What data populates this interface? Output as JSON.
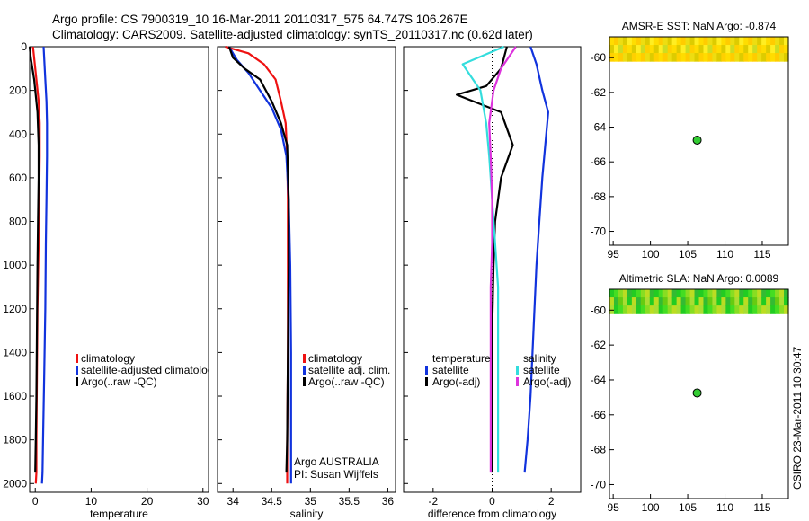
{
  "header": {
    "line1": "Argo profile: CS 7900319_10 16-Mar-2011 20110317_575 64.747S 106.267E",
    "line2": "Climatology: CARS2009. Satellite-adjusted climatology: synTS_20110317.nc (0.62d later)"
  },
  "colors": {
    "climatology": "#ee1111",
    "satellite": "#1133dd",
    "argo": "#000000",
    "sat_salinity": "#33dddd",
    "argo_adj_salinity": "#dd33dd"
  },
  "chart_data": [
    {
      "type": "line",
      "title": "",
      "xlabel": "temperature",
      "ylabel": "",
      "xlim": [
        -1,
        31
      ],
      "ylim": [
        2040,
        0
      ],
      "xticks": [
        0,
        10,
        20,
        30
      ],
      "yticks": [
        0,
        200,
        400,
        600,
        800,
        1000,
        1200,
        1400,
        1600,
        1800,
        2000
      ],
      "legend": [
        "climatology",
        "satellite-adjusted climatology",
        "Argo(..raw -QC)"
      ],
      "series": [
        {
          "name": "climatology",
          "color": "#ee1111",
          "x": [
            -0.4,
            0.2,
            0.6,
            0.8,
            0.8,
            0.7,
            0.6,
            0.4,
            0.3,
            0.2,
            0.2,
            0.1
          ],
          "y": [
            0,
            150,
            250,
            350,
            500,
            700,
            900,
            1200,
            1500,
            1800,
            1950,
            2000
          ]
        },
        {
          "name": "satellite-adjusted climatology",
          "color": "#1133dd",
          "x": [
            1.5,
            1.8,
            2.0,
            2.1,
            2.1,
            2.0,
            1.9,
            1.8,
            1.6,
            1.4,
            1.3,
            1.2
          ],
          "y": [
            0,
            150,
            250,
            350,
            500,
            700,
            900,
            1200,
            1500,
            1800,
            1950,
            2000
          ]
        },
        {
          "name": "Argo(..raw -QC)",
          "color": "#000000",
          "x": [
            -1.0,
            -0.8,
            -0.2,
            0.4,
            0.6,
            0.6,
            0.5,
            0.4,
            0.3,
            0.2,
            0.1,
            0.0
          ],
          "y": [
            0,
            50,
            150,
            300,
            450,
            600,
            800,
            1000,
            1300,
            1600,
            1800,
            1950
          ]
        }
      ]
    },
    {
      "type": "line",
      "title": "",
      "xlabel": "salinity",
      "ylabel": "",
      "xlim": [
        33.8,
        36.1
      ],
      "ylim": [
        2040,
        0
      ],
      "xticks": [
        34,
        34.5,
        35,
        35.5,
        36
      ],
      "legend": [
        "climatology",
        "satellite adj. clim.",
        "Argo(..raw -QC)"
      ],
      "annotations": [
        "Argo AUSTRALIA",
        "PI: Susan Wijffels"
      ],
      "series": [
        {
          "name": "climatology",
          "color": "#ee1111",
          "x": [
            33.9,
            34.2,
            34.4,
            34.55,
            34.62,
            34.68,
            34.7,
            34.71,
            34.71,
            34.71,
            34.7,
            34.7
          ],
          "y": [
            0,
            30,
            80,
            150,
            250,
            350,
            500,
            700,
            1000,
            1400,
            1800,
            2000
          ]
        },
        {
          "name": "satellite adj. clim.",
          "color": "#1133dd",
          "x": [
            33.95,
            34.05,
            34.2,
            34.35,
            34.5,
            34.62,
            34.69,
            34.72,
            34.74,
            34.75,
            34.75,
            34.75
          ],
          "y": [
            0,
            60,
            120,
            200,
            280,
            380,
            500,
            700,
            1000,
            1400,
            1800,
            2000
          ]
        },
        {
          "name": "Argo(..raw -QC)",
          "color": "#000000",
          "x": [
            33.95,
            34.0,
            34.15,
            34.35,
            34.5,
            34.62,
            34.7,
            34.72,
            34.72,
            34.71,
            34.7,
            34.69
          ],
          "y": [
            0,
            50,
            100,
            150,
            250,
            350,
            450,
            700,
            1000,
            1400,
            1800,
            1950
          ]
        }
      ]
    },
    {
      "type": "line",
      "title": "",
      "xlabel": "difference from climatology",
      "ylabel": "",
      "xlim": [
        -3.0,
        3.0
      ],
      "ylim": [
        2040,
        0
      ],
      "xticks": [
        -2,
        0,
        2
      ],
      "legend": [
        "temperature",
        "satellite",
        "Argo(-adj)",
        "salinity",
        "satellite",
        "Argo(-adj)"
      ],
      "series": [
        {
          "name": "temperature satellite",
          "color": "#1133dd",
          "x": [
            1.3,
            1.5,
            1.7,
            1.9,
            1.8,
            1.7,
            1.6,
            1.5,
            1.4,
            1.3,
            1.2,
            1.1
          ],
          "y": [
            0,
            80,
            200,
            300,
            450,
            600,
            800,
            1000,
            1300,
            1600,
            1800,
            1950
          ]
        },
        {
          "name": "temperature Argo(-adj)",
          "color": "#000000",
          "x": [
            0.5,
            0.3,
            -0.2,
            -1.2,
            0.3,
            0.7,
            0.3,
            0.1,
            0.05,
            0.0,
            0.0,
            0.0
          ],
          "y": [
            0,
            100,
            180,
            220,
            300,
            450,
            600,
            800,
            1000,
            1300,
            1600,
            1950
          ]
        },
        {
          "name": "salinity satellite",
          "color": "#33dddd",
          "x": [
            0.4,
            -1.0,
            -0.4,
            -0.2,
            -0.1,
            0.0,
            0.1,
            0.2,
            0.2,
            0.2,
            0.2,
            0.2
          ],
          "y": [
            0,
            80,
            200,
            350,
            500,
            700,
            900,
            1100,
            1400,
            1600,
            1800,
            1950
          ]
        },
        {
          "name": "salinity Argo(-adj)",
          "color": "#dd33dd",
          "x": [
            0.8,
            0.3,
            0.05,
            -0.1,
            -0.05,
            0.0,
            0.0,
            -0.05,
            -0.05,
            -0.05,
            -0.05,
            -0.05
          ],
          "y": [
            0,
            100,
            200,
            350,
            500,
            700,
            900,
            1100,
            1400,
            1600,
            1800,
            1950
          ]
        }
      ]
    },
    {
      "type": "heatmap",
      "title": "AMSR-E SST: NaN Argo: -0.874",
      "xlim": [
        94.5,
        118.5
      ],
      "ylim": [
        -70.8,
        -58.8
      ],
      "xticks": [
        95,
        100,
        105,
        110,
        115
      ],
      "yticks": [
        -60,
        -62,
        -64,
        -66,
        -68,
        -70
      ],
      "argo_location": {
        "lon": 106.267,
        "lat": -64.747
      },
      "field_lat_range": [
        -58.8,
        -60.2
      ]
    },
    {
      "type": "heatmap",
      "title": "Altimetric SLA: NaN Argo: 0.0089",
      "xlim": [
        94.5,
        118.5
      ],
      "ylim": [
        -70.8,
        -58.8
      ],
      "xticks": [
        95,
        100,
        105,
        110,
        115
      ],
      "yticks": [
        -60,
        -62,
        -64,
        -66,
        -68,
        -70
      ],
      "argo_location": {
        "lon": 106.267,
        "lat": -64.747
      },
      "field_lat_range": [
        -58.8,
        -60.2
      ]
    }
  ],
  "footer": {
    "credit": "CSIRO 23-Mar-2011 10:30:47"
  }
}
